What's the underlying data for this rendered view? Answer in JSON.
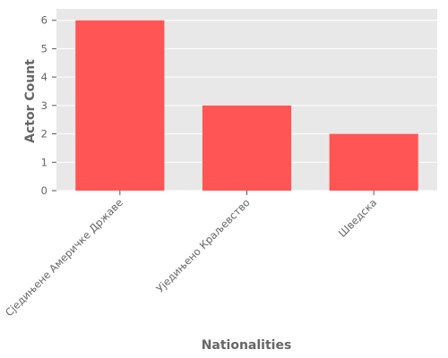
{
  "colors": {
    "bar": "#ff5555",
    "panel_background": "#e8e8e8",
    "grid": "#ffffff",
    "text": "#666666"
  },
  "chart_data": {
    "type": "bar",
    "title": "",
    "xlabel": "Nationalities",
    "ylabel": "Actor Count",
    "categories": [
      "Сједињене Америчке Државе",
      "Уједињено Краљевство",
      "Шведска"
    ],
    "values": [
      6,
      3,
      2
    ],
    "ylim": [
      0,
      6.4
    ],
    "yticks": [
      0,
      1,
      2,
      3,
      4,
      5,
      6
    ],
    "grid": true,
    "legend": "none"
  }
}
